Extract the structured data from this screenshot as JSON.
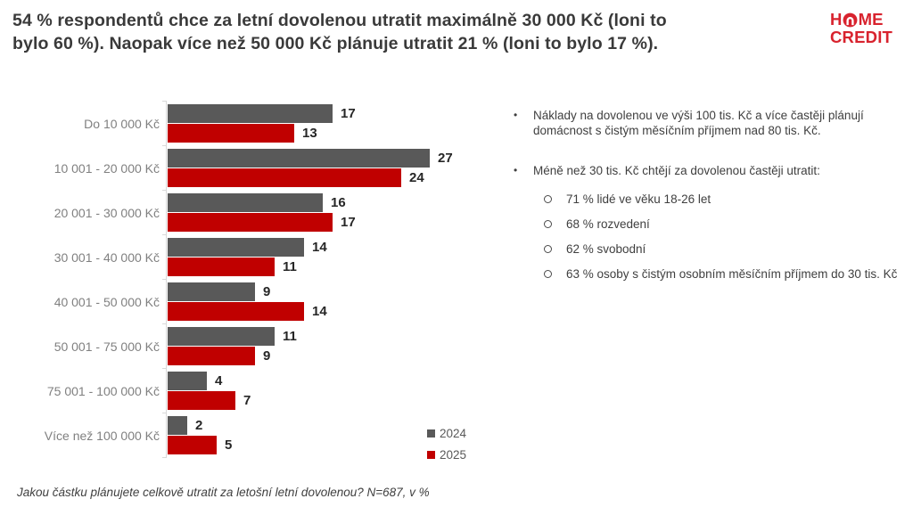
{
  "header": {
    "title_line1": "54 % respondentů chce za letní dovolenou utratit maximálně 30 000 Kč (loni to",
    "title_line2": "bylo 60 %). Naopak více než 50 000 Kč plánuje utratit 21 % (loni to bylo 17 %)."
  },
  "logo": {
    "h": "H",
    "me": "ME",
    "credit": "CREDIT",
    "color": "#d8232e"
  },
  "chart_data": {
    "type": "bar",
    "orientation": "horizontal",
    "categories": [
      "Do 10 000 Kč",
      "10 001 - 20 000 Kč",
      "20 001 - 30 000 Kč",
      "30 001 - 40 000 Kč",
      "40 001 - 50 000 Kč",
      "50 001 - 75 000 Kč",
      "75 001 - 100 000 Kč",
      "Více než 100 000 Kč"
    ],
    "series": [
      {
        "name": "2024",
        "color": "#595959",
        "values": [
          17,
          27,
          16,
          14,
          9,
          11,
          4,
          2
        ]
      },
      {
        "name": "2025",
        "color": "#c00000",
        "values": [
          13,
          24,
          17,
          11,
          14,
          9,
          7,
          5
        ]
      }
    ],
    "value_unit": "%",
    "xlim": [
      0,
      30
    ],
    "data_labels": true,
    "grid": false,
    "legend_position": "bottom-right"
  },
  "insights": {
    "bullet_marker": "•",
    "bullets": [
      {
        "text": "Náklady na dovolenou ve výši 100 tis. Kč a více častěji plánují domácnost s čistým měsíčním příjmem nad 80 tis. Kč."
      },
      {
        "text": "Méně než 30 tis. Kč chtějí za dovolenou častěji utratit:",
        "sub": [
          "71 % lidé ve věku 18-26 let",
          "68 % rozvedení",
          "62 % svobodní",
          "63 % osoby s čistým osobním měsíčním příjmem do 30 tis. Kč"
        ]
      }
    ]
  },
  "footnote": "Jakou částku plánujete celkově utratit za letošní letní dovolenou? N=687, v %"
}
